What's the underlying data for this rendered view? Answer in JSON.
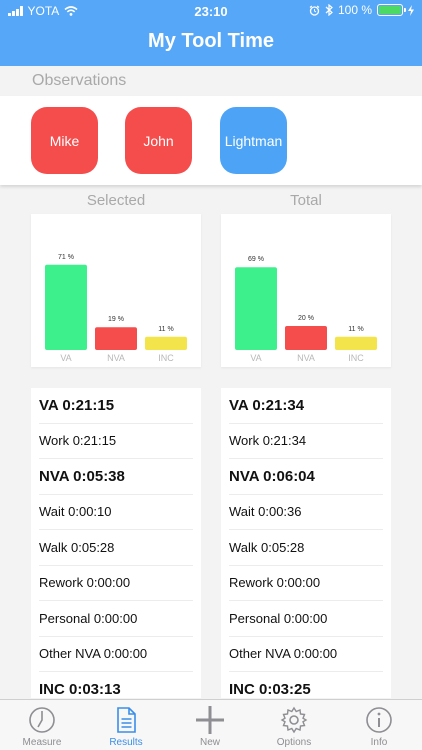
{
  "status_bar": {
    "carrier": "YOTA",
    "time": "23:10",
    "battery_percent": "100 %"
  },
  "nav": {
    "title": "My Tool Time"
  },
  "observations": {
    "header": "Observations",
    "buttons": [
      {
        "label": "Mike",
        "color": "#f54c4c"
      },
      {
        "label": "John",
        "color": "#f54c4c"
      },
      {
        "label": "Lightman",
        "color": "#4da4f6"
      }
    ]
  },
  "selected": {
    "label": "Selected",
    "chart_data": {
      "type": "bar",
      "categories": [
        "VA",
        "NVA",
        "INC"
      ],
      "values": [
        71,
        19,
        11
      ],
      "value_labels": [
        "71 %",
        "19 %",
        "11 %"
      ],
      "colors": [
        "#3ef08b",
        "#f54c4c",
        "#f2e44a"
      ],
      "ylim": [
        0,
        100
      ]
    },
    "stats": [
      {
        "text": "VA 0:21:15",
        "bold": true
      },
      {
        "text": "Work 0:21:15",
        "bold": false
      },
      {
        "text": "NVA 0:05:38",
        "bold": true
      },
      {
        "text": "Wait 0:00:10",
        "bold": false
      },
      {
        "text": "Walk 0:05:28",
        "bold": false
      },
      {
        "text": "Rework 0:00:00",
        "bold": false
      },
      {
        "text": "Personal 0:00:00",
        "bold": false
      },
      {
        "text": "Other NVA 0:00:00",
        "bold": false
      },
      {
        "text": "INC 0:03:13",
        "bold": true
      }
    ]
  },
  "total": {
    "label": "Total",
    "chart_data": {
      "type": "bar",
      "categories": [
        "VA",
        "NVA",
        "INC"
      ],
      "values": [
        69,
        20,
        11
      ],
      "value_labels": [
        "69 %",
        "20 %",
        "11 %"
      ],
      "colors": [
        "#3ef08b",
        "#f54c4c",
        "#f2e44a"
      ],
      "ylim": [
        0,
        100
      ]
    },
    "stats": [
      {
        "text": "VA 0:21:34",
        "bold": true
      },
      {
        "text": "Work 0:21:34",
        "bold": false
      },
      {
        "text": "NVA 0:06:04",
        "bold": true
      },
      {
        "text": "Wait 0:00:36",
        "bold": false
      },
      {
        "text": "Walk 0:05:28",
        "bold": false
      },
      {
        "text": "Rework 0:00:00",
        "bold": false
      },
      {
        "text": "Personal 0:00:00",
        "bold": false
      },
      {
        "text": "Other NVA 0:00:00",
        "bold": false
      },
      {
        "text": "INC 0:03:25",
        "bold": true
      }
    ]
  },
  "tabs": [
    {
      "label": "Measure",
      "icon": "clock-icon",
      "active": false
    },
    {
      "label": "Results",
      "icon": "document-icon",
      "active": true
    },
    {
      "label": "New",
      "icon": "plus-icon",
      "active": false
    },
    {
      "label": "Options",
      "icon": "gear-icon",
      "active": false
    },
    {
      "label": "Info",
      "icon": "info-icon",
      "active": false
    }
  ]
}
